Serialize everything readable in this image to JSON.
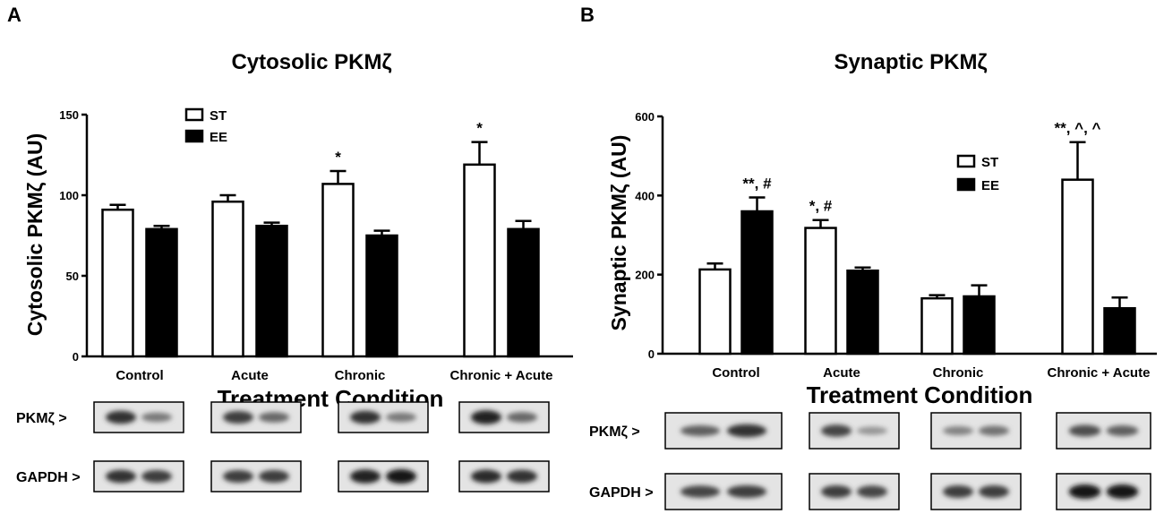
{
  "panels": [
    {
      "letter": "A",
      "title": "Cytosolic PKMζ"
    },
    {
      "letter": "B",
      "title": "Synaptic PKMζ"
    }
  ],
  "chart_data": [
    {
      "type": "bar",
      "title": "Cytosolic PKMζ",
      "xlabel": "Treatment Condition",
      "ylabel": "Cytosolic PKMζ (AU)",
      "ylim": [
        0,
        150
      ],
      "yticks": [
        0,
        50,
        100,
        150
      ],
      "categories": [
        "Control",
        "Acute",
        "Chronic",
        "Chronic + Acute"
      ],
      "series": [
        {
          "name": "ST",
          "fill": "#ffffff",
          "values": [
            91,
            96,
            107,
            119
          ],
          "errors": [
            3,
            4,
            8,
            14
          ]
        },
        {
          "name": "EE",
          "fill": "#000000",
          "values": [
            79,
            81,
            75,
            79
          ],
          "errors": [
            2,
            2,
            3,
            5
          ]
        }
      ],
      "annotations": [
        {
          "category": 2,
          "series": 0,
          "text": "*"
        },
        {
          "category": 3,
          "series": 0,
          "text": "*"
        }
      ],
      "legend": "top-center",
      "grid": false,
      "blots": [
        {
          "label": "PKMζ >",
          "bands": [
            [
              0.85,
              0.45
            ],
            [
              0.8,
              0.55
            ],
            [
              0.85,
              0.45
            ],
            [
              0.95,
              0.55
            ]
          ]
        },
        {
          "label": "GAPDH >",
          "bands": [
            [
              0.85,
              0.8
            ],
            [
              0.8,
              0.8
            ],
            [
              0.95,
              1.0
            ],
            [
              0.9,
              0.85
            ]
          ]
        }
      ]
    },
    {
      "type": "bar",
      "title": "Synaptic PKMζ",
      "xlabel": "Treatment Condition",
      "ylabel": "Synaptic PKMζ (AU)",
      "ylim": [
        0,
        600
      ],
      "yticks": [
        0,
        200,
        400,
        600
      ],
      "categories": [
        "Control",
        "Acute",
        "Chronic",
        "Chronic + Acute"
      ],
      "series": [
        {
          "name": "ST",
          "fill": "#ffffff",
          "values": [
            213,
            318,
            140,
            440
          ],
          "errors": [
            15,
            20,
            8,
            95
          ]
        },
        {
          "name": "EE",
          "fill": "#000000",
          "values": [
            360,
            210,
            145,
            115
          ],
          "errors": [
            35,
            8,
            28,
            27
          ]
        }
      ],
      "annotations": [
        {
          "category": 0,
          "series": 1,
          "text": "**, #"
        },
        {
          "category": 1,
          "series": 0,
          "text": "*, #"
        },
        {
          "category": 3,
          "series": 0,
          "text": "**, ^, ^"
        }
      ],
      "legend": "top-right",
      "grid": false,
      "blots": [
        {
          "label": "PKMζ >",
          "bands": [
            [
              0.6,
              0.85
            ],
            [
              0.75,
              0.3
            ],
            [
              0.4,
              0.5
            ],
            [
              0.7,
              0.6
            ]
          ]
        },
        {
          "label": "GAPDH >",
          "bands": [
            [
              0.75,
              0.8
            ],
            [
              0.8,
              0.75
            ],
            [
              0.8,
              0.8
            ],
            [
              1.0,
              1.0
            ]
          ]
        }
      ]
    }
  ]
}
